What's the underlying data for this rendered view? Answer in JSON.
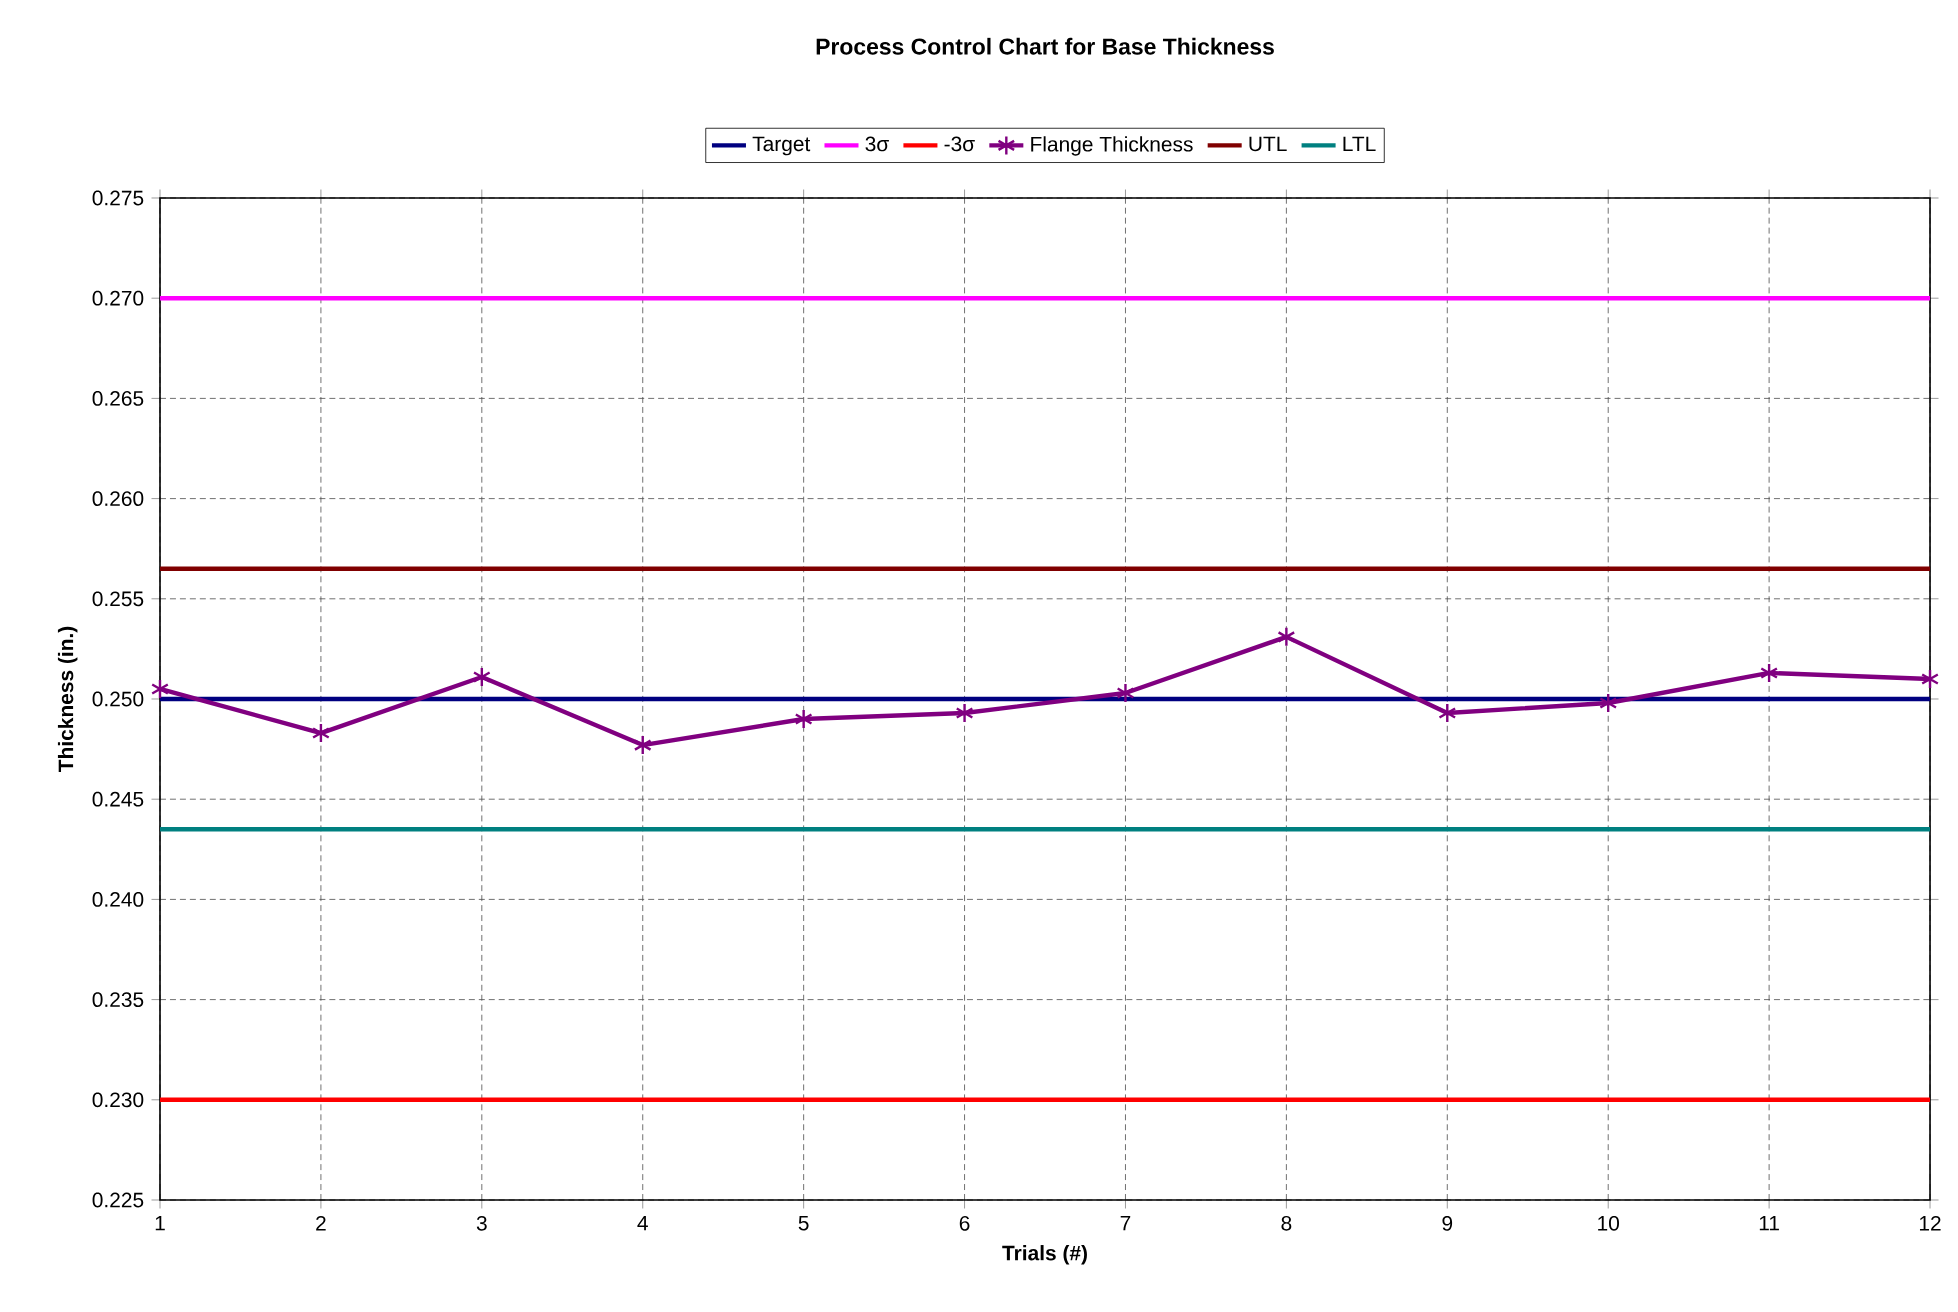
{
  "chart_data": {
    "type": "line",
    "title": "Process Control Chart for Base Thickness",
    "xlabel": "Trials (#)",
    "ylabel": "Thickness (in.)",
    "x": [
      1,
      2,
      3,
      4,
      5,
      6,
      7,
      8,
      9,
      10,
      11,
      12
    ],
    "xlim": [
      1,
      12
    ],
    "xticks": [
      1,
      2,
      3,
      4,
      5,
      6,
      7,
      8,
      9,
      10,
      11,
      12
    ],
    "ylim": [
      0.225,
      0.275
    ],
    "yticks": [
      0.225,
      {
        "value": 0.23,
        "label": "0.230"
      },
      0.235,
      {
        "value": 0.24,
        "label": "0.240"
      },
      0.245,
      {
        "value": 0.25,
        "label": "0.250"
      },
      0.255,
      {
        "value": 0.26,
        "label": "0.260"
      },
      0.265,
      {
        "value": 0.27,
        "label": "0.270"
      },
      0.275
    ],
    "grid": true,
    "legend": "top",
    "marker": "none",
    "line_style": "solid",
    "series": [
      {
        "name": "Target",
        "color": "#000080",
        "values": [
          0.25,
          0.25,
          0.25,
          0.25,
          0.25,
          0.25,
          0.25,
          0.25,
          0.25,
          0.25,
          0.25,
          0.25
        ]
      },
      {
        "name": "3σ",
        "color": "#ff00ff",
        "values": [
          0.27,
          0.27,
          0.27,
          0.27,
          0.27,
          0.27,
          0.27,
          0.27,
          0.27,
          0.27,
          0.27,
          0.27
        ]
      },
      {
        "name": "-3σ",
        "color": "#ff0000",
        "values": [
          0.23,
          0.23,
          0.23,
          0.23,
          0.23,
          0.23,
          0.23,
          0.23,
          0.23,
          0.23,
          0.23,
          0.23
        ]
      },
      {
        "name": "Flange Thickness",
        "color": "#800080",
        "marker": "cross",
        "values": [
          0.2505,
          0.2483,
          0.2511,
          0.2477,
          0.249,
          0.2493,
          0.2503,
          0.2531,
          0.2493,
          0.2498,
          0.2513,
          0.251
        ]
      },
      {
        "name": "UTL",
        "color": "#800000",
        "values": [
          0.2565,
          0.2565,
          0.2565,
          0.2565,
          0.2565,
          0.2565,
          0.2565,
          0.2565,
          0.2565,
          0.2565,
          0.2565,
          0.2565
        ]
      },
      {
        "name": "LTL",
        "color": "#008080",
        "values": [
          0.2435,
          0.2435,
          0.2435,
          0.2435,
          0.2435,
          0.2435,
          0.2435,
          0.2435,
          0.2435,
          0.2435,
          0.2435,
          0.2435
        ]
      }
    ]
  }
}
